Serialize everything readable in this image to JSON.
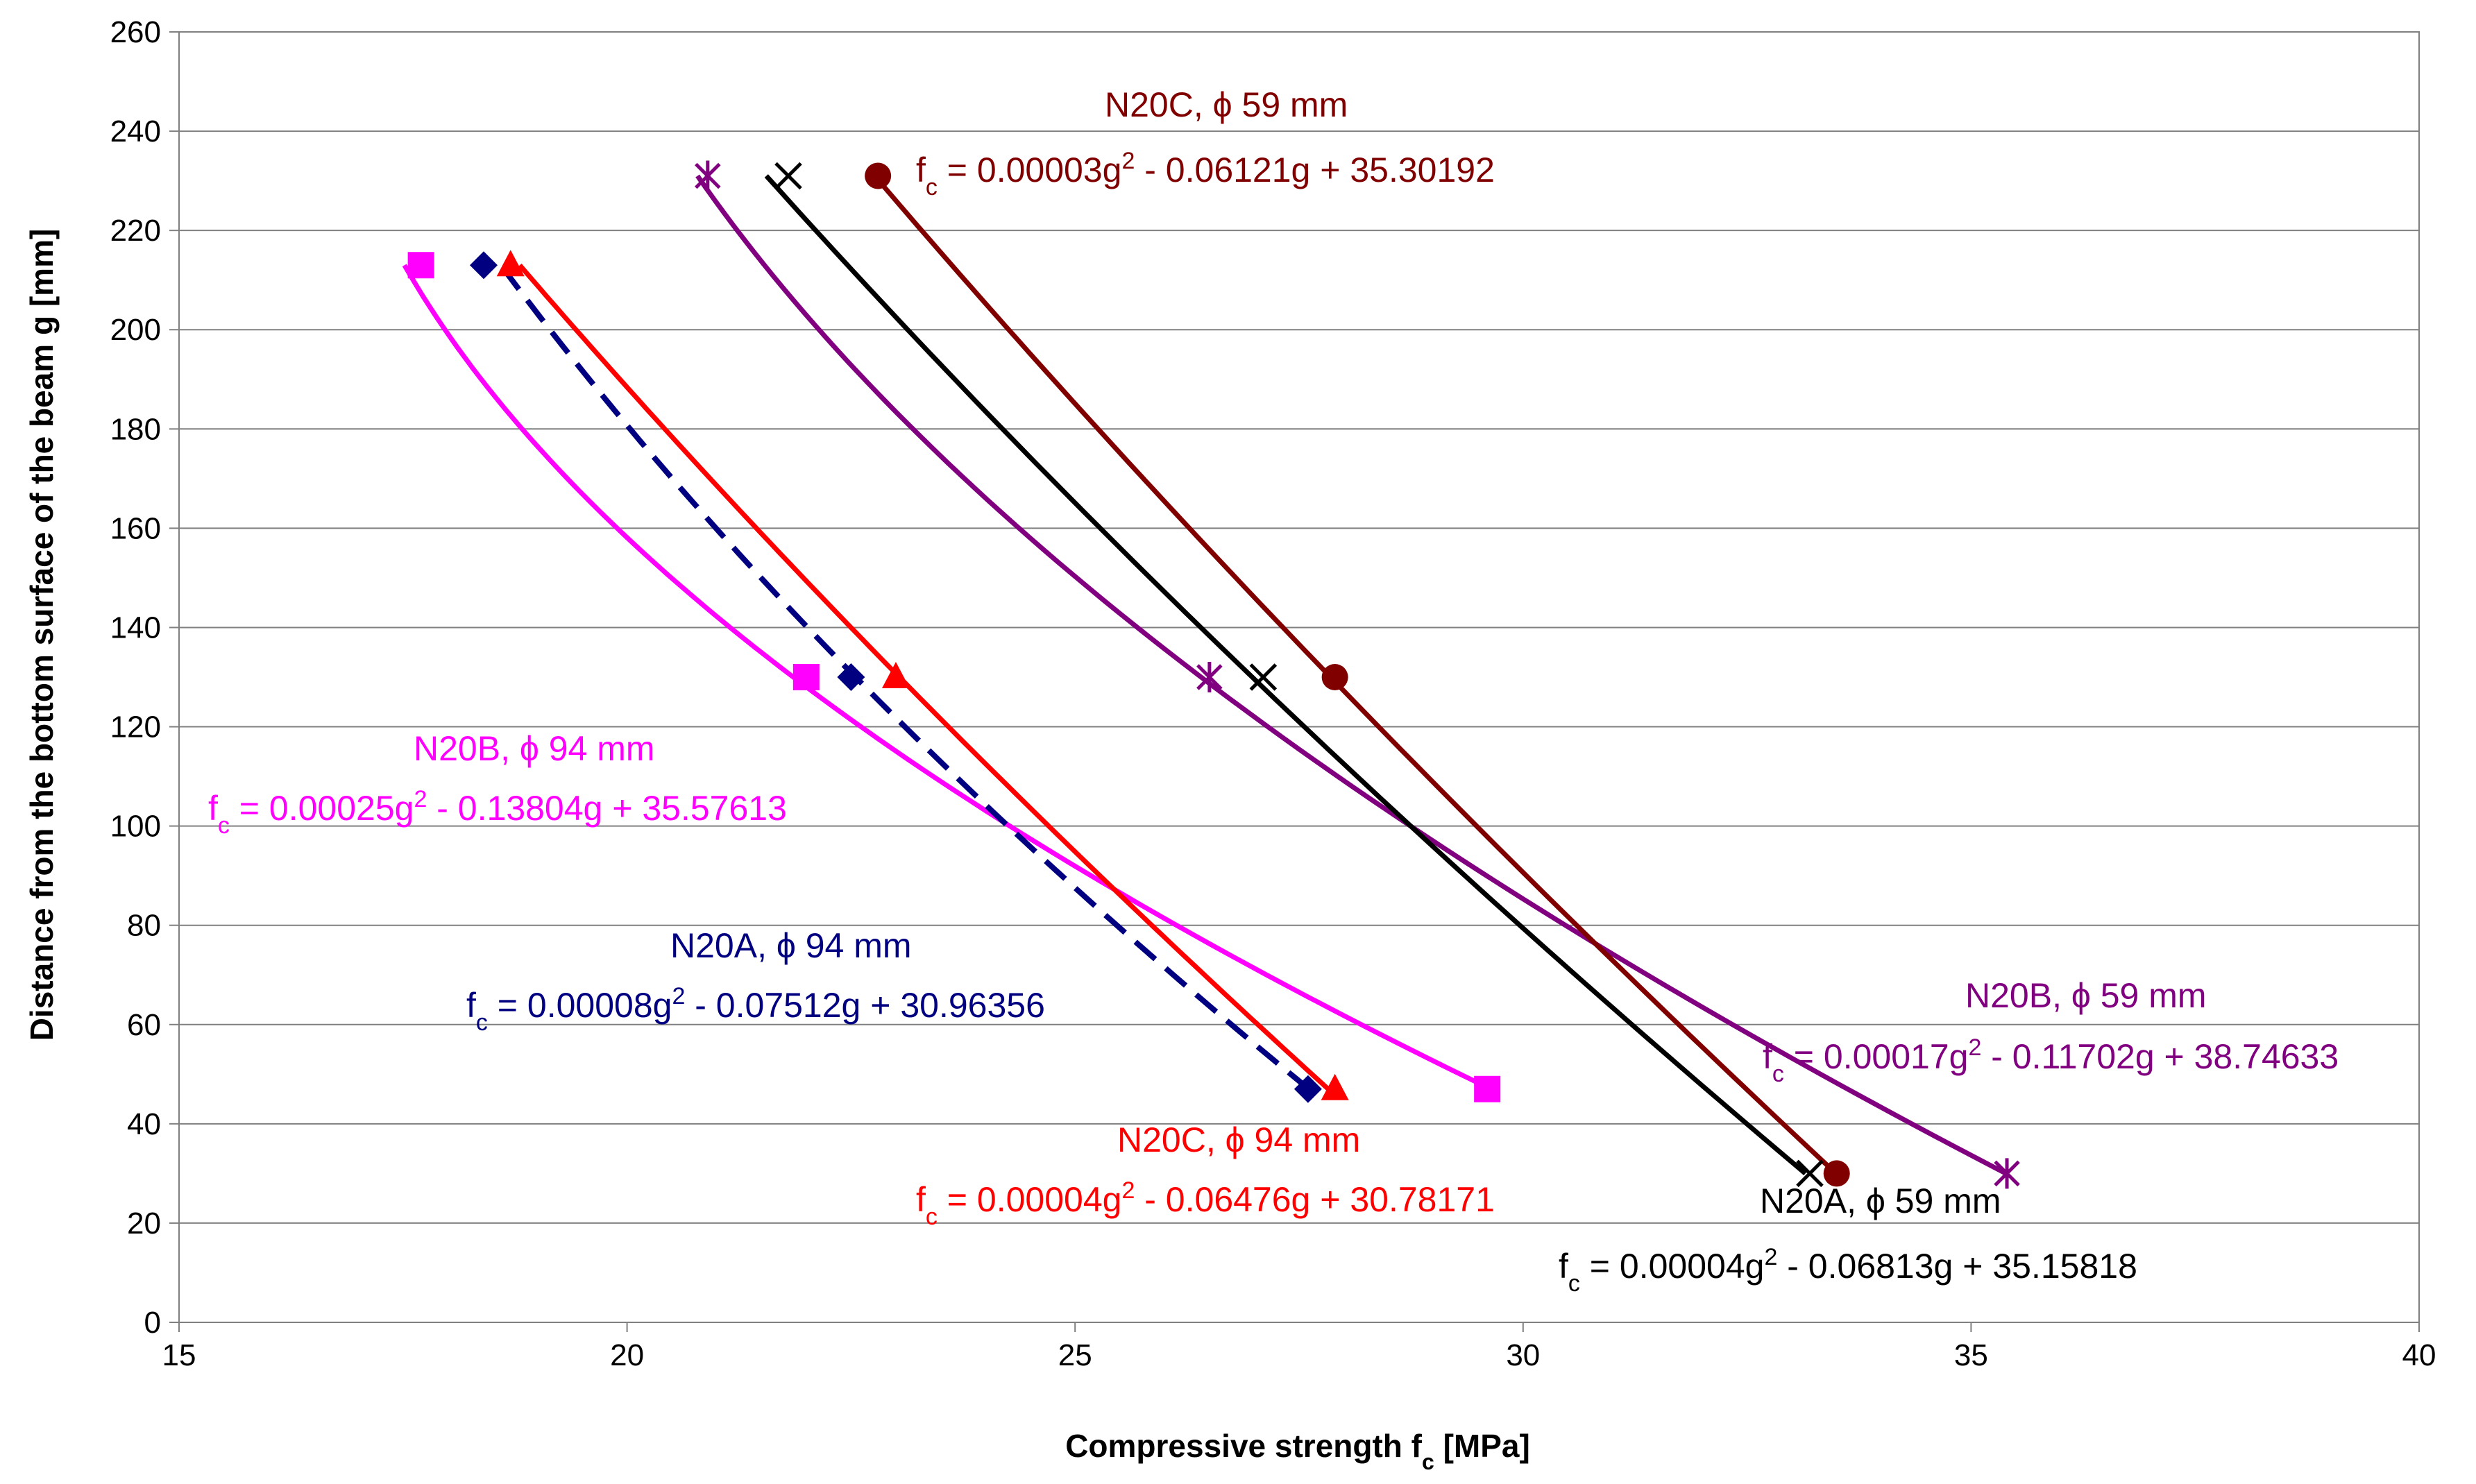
{
  "chart_data": {
    "type": "scatter",
    "title": "",
    "xlabel_main": "Compressive strength f",
    "xlabel_sub": "c",
    "xlabel_tail": " [MPa]",
    "ylabel": "Distance from the bottom surface of the beam g [mm]",
    "xlim": [
      15,
      40
    ],
    "ylim": [
      0,
      260
    ],
    "xticks": [
      15,
      20,
      25,
      30,
      35,
      40
    ],
    "yticks": [
      0,
      20,
      40,
      60,
      80,
      100,
      120,
      140,
      160,
      180,
      200,
      220,
      240,
      260
    ],
    "grid": "horizontal",
    "series": [
      {
        "id": "n20b94",
        "name": "N20B, ϕ 94 mm",
        "color": "#ff00ff",
        "marker": "square",
        "dashed": false,
        "points": [
          [
            17.7,
            213
          ],
          [
            22.0,
            130
          ],
          [
            29.6,
            47
          ]
        ],
        "coef": [
          0.00025,
          -0.13804,
          35.57613
        ],
        "eq_coef_a": "0.00025",
        "eq_rest": " - 0.13804g + 35.57613"
      },
      {
        "id": "n20a94",
        "name": "N20A, ϕ 94 mm",
        "color": "#000080",
        "marker": "diamond",
        "dashed": true,
        "points": [
          [
            18.4,
            213
          ],
          [
            22.5,
            130
          ],
          [
            27.6,
            47
          ]
        ],
        "coef": [
          8e-05,
          -0.07512,
          30.96356
        ],
        "eq_coef_a": "0.00008",
        "eq_rest": " - 0.07512g + 30.96356"
      },
      {
        "id": "n20c94",
        "name": "N20C, ϕ 94 mm",
        "color": "#ff0000",
        "marker": "triangle",
        "dashed": false,
        "points": [
          [
            18.7,
            213
          ],
          [
            23.0,
            130
          ],
          [
            27.9,
            47
          ]
        ],
        "coef": [
          4e-05,
          -0.06476,
          30.78171
        ],
        "eq_coef_a": "0.00004",
        "eq_rest": " - 0.06476g + 30.78171"
      },
      {
        "id": "n20b59",
        "name": "N20B, ϕ 59 mm",
        "color": "#800080",
        "marker": "star",
        "dashed": false,
        "points": [
          [
            20.9,
            231
          ],
          [
            26.5,
            130
          ],
          [
            35.4,
            30
          ]
        ],
        "coef": [
          0.00017,
          -0.11702,
          38.74633
        ],
        "eq_coef_a": "0.00017",
        "eq_rest": " - 0.11702g + 38.74633"
      },
      {
        "id": "n20a59",
        "name": "N20A, ϕ 59 mm",
        "color": "#000000",
        "marker": "x",
        "dashed": false,
        "points": [
          [
            21.8,
            231
          ],
          [
            27.1,
            130
          ],
          [
            33.2,
            30
          ]
        ],
        "coef": [
          4e-05,
          -0.06813,
          35.15818
        ],
        "eq_coef_a": "0.00004",
        "eq_rest": " - 0.06813g + 35.15818"
      },
      {
        "id": "n20c59",
        "name": "N20C, ϕ 59 mm",
        "color": "#800000",
        "marker": "circle",
        "dashed": false,
        "points": [
          [
            22.8,
            231
          ],
          [
            27.9,
            130
          ],
          [
            33.5,
            30
          ]
        ],
        "coef": [
          3e-05,
          -0.06121,
          35.30192
        ],
        "eq_coef_a": "0.00003",
        "eq_rest": " - 0.06121g + 35.30192"
      }
    ],
    "eq_lhs_main": "f",
    "eq_lhs_sub": "c",
    "eq_mid": " = ",
    "eq_var": "g",
    "eq_exp": "2"
  }
}
